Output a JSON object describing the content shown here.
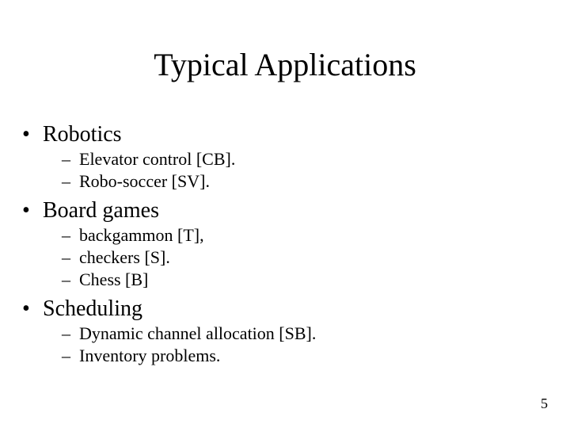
{
  "title": "Typical Applications",
  "title_fontsize": 40,
  "level1_fontsize": 28,
  "level2_fontsize": 22,
  "background_color": "#ffffff",
  "text_color": "#000000",
  "font_family": "Times New Roman",
  "page_number": "5",
  "items": [
    {
      "label": "Robotics",
      "sub": [
        "Elevator control [CB].",
        "Robo-soccer [SV]."
      ]
    },
    {
      "label": "Board games",
      "sub": [
        "backgammon [T],",
        "checkers [S].",
        "Chess [B]"
      ]
    },
    {
      "label": "Scheduling",
      "sub": [
        "Dynamic channel allocation [SB].",
        "Inventory problems."
      ]
    }
  ]
}
